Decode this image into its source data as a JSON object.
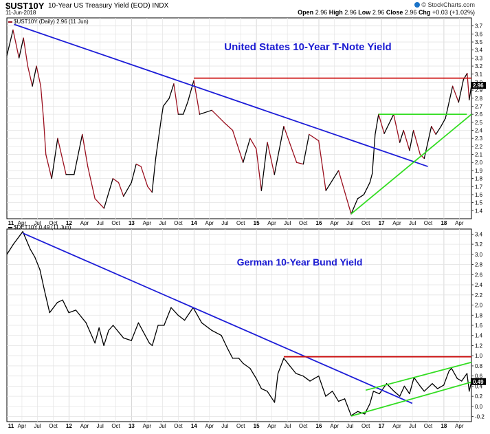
{
  "header": {
    "symbol": "$UST10Y",
    "description": "10-Year US Treasury Yield (EOD) INDX",
    "date": "11-Jun-2018",
    "credit": "© StockCharts.com",
    "ohlc": {
      "open_label": "Open",
      "open": "2.96",
      "high_label": "High",
      "high": "2.96",
      "low_label": "Low",
      "low": "2.96",
      "close_label": "Close",
      "close": "2.96",
      "chg_label": "Chg",
      "chg": "+0.03 (+1.02%)"
    }
  },
  "chart_data": [
    {
      "type": "line",
      "title": "United States 10-Year T-Note Yield",
      "legend": "$UST10Y (Daily) 2.96 (11 Jun)",
      "last_value_label": "2.96",
      "ylim": [
        1.3,
        3.8
      ],
      "yticks": [
        "1.4",
        "1.5",
        "1.6",
        "1.7",
        "1.8",
        "1.9",
        "2.0",
        "2.1",
        "2.2",
        "2.3",
        "2.4",
        "2.5",
        "2.6",
        "2.7",
        "2.8",
        "2.9",
        "3.0",
        "3.1",
        "3.2",
        "3.3",
        "3.4",
        "3.5",
        "3.6",
        "3.7"
      ],
      "xticks": [
        "11",
        "Apr",
        "Jul",
        "Oct",
        "12",
        "Apr",
        "Jul",
        "Oct",
        "13",
        "Apr",
        "Jul",
        "Oct",
        "14",
        "Apr",
        "Jul",
        "Oct",
        "15",
        "Apr",
        "Jul",
        "Oct",
        "16",
        "Apr",
        "Jul",
        "Oct",
        "17",
        "Apr",
        "Jul",
        "Oct",
        "18",
        "Apr"
      ],
      "series": [
        {
          "color": "#9a0f1e",
          "segment_colors": [
            "#9a0f1e",
            "#000000"
          ],
          "x": [
            "2011-01-03",
            "2011-02-08",
            "2011-03-15",
            "2011-04-10",
            "2011-05-05",
            "2011-06-01",
            "2011-06-25",
            "2011-07-20",
            "2011-08-05",
            "2011-08-19",
            "2011-09-22",
            "2011-10-27",
            "2011-12-15",
            "2012-01-31",
            "2012-03-19",
            "2012-04-20",
            "2012-06-01",
            "2012-07-24",
            "2012-09-14",
            "2012-10-17",
            "2012-11-15",
            "2012-12-31",
            "2013-01-28",
            "2013-02-25",
            "2013-04-05",
            "2013-05-01",
            "2013-05-22",
            "2013-06-24",
            "2013-07-05",
            "2013-08-09",
            "2013-09-05",
            "2013-10-01",
            "2013-10-30",
            "2013-11-25",
            "2013-12-31",
            "2014-02-03",
            "2014-04-15",
            "2014-06-25",
            "2014-08-15",
            "2014-10-15",
            "2014-11-25",
            "2014-12-31",
            "2015-01-30",
            "2015-03-06",
            "2015-04-16",
            "2015-06-10",
            "2015-08-24",
            "2015-10-02",
            "2015-11-05",
            "2015-12-31",
            "2016-02-11",
            "2016-04-25",
            "2016-06-24",
            "2016-07-08",
            "2016-08-15",
            "2016-09-20",
            "2016-10-25",
            "2016-11-08",
            "2016-11-25",
            "2016-12-15",
            "2017-01-17",
            "2017-03-13",
            "2017-04-18",
            "2017-05-10",
            "2017-06-14",
            "2017-07-07",
            "2017-08-15",
            "2017-09-08",
            "2017-10-20",
            "2017-11-15",
            "2017-12-15",
            "2018-01-10",
            "2018-01-31",
            "2018-02-21",
            "2018-03-28",
            "2018-04-25",
            "2018-05-17",
            "2018-05-29",
            "2018-06-11"
          ],
          "values": [
            3.33,
            3.65,
            3.3,
            3.55,
            3.2,
            2.95,
            3.2,
            2.95,
            2.55,
            2.1,
            1.8,
            2.3,
            1.85,
            1.85,
            2.35,
            1.95,
            1.55,
            1.43,
            1.8,
            1.75,
            1.58,
            1.75,
            1.98,
            1.95,
            1.7,
            1.63,
            2.05,
            2.55,
            2.7,
            2.8,
            2.98,
            2.6,
            2.6,
            2.75,
            3.02,
            2.6,
            2.65,
            2.5,
            2.4,
            2.0,
            2.3,
            2.17,
            1.65,
            2.25,
            1.85,
            2.45,
            2.0,
            1.98,
            2.35,
            2.27,
            1.65,
            1.9,
            1.46,
            1.36,
            1.55,
            1.6,
            1.75,
            1.86,
            2.35,
            2.6,
            2.36,
            2.6,
            2.25,
            2.4,
            2.15,
            2.4,
            2.1,
            2.05,
            2.45,
            2.35,
            2.45,
            2.55,
            2.75,
            2.95,
            2.75,
            3.03,
            3.11,
            2.78,
            2.96
          ]
        }
      ],
      "trendlines": [
        {
          "color": "#1e1ed8",
          "x": [
            "2011-02-14",
            "2017-09-29"
          ],
          "y": [
            3.72,
            1.95
          ]
        },
        {
          "color": "#cc1111",
          "x": [
            "2013-12-31",
            "2018-06-11"
          ],
          "y": [
            3.05,
            3.05
          ]
        },
        {
          "color": "#33dd22",
          "x": [
            "2016-12-15",
            "2018-05-15"
          ],
          "y": [
            2.6,
            2.6
          ]
        },
        {
          "color": "#33dd22",
          "x": [
            "2016-07-08",
            "2018-06-11"
          ],
          "y": [
            1.36,
            2.6
          ]
        }
      ]
    },
    {
      "type": "line",
      "title": "German 10-Year Bund Yield",
      "legend": "$DET10Y 0.49 (11 Jun)",
      "last_value_label": "0.49",
      "ylim": [
        -0.3,
        3.5
      ],
      "yticks": [
        "-0.2",
        "0.0",
        "0.2",
        "0.4",
        "0.6",
        "0.8",
        "1.0",
        "1.2",
        "1.4",
        "1.6",
        "1.8",
        "2.0",
        "2.2",
        "2.4",
        "2.6",
        "2.8",
        "3.0",
        "3.2",
        "3.4"
      ],
      "xticks": [
        "11",
        "Apr",
        "Jul",
        "Oct",
        "12",
        "Apr",
        "Jul",
        "Oct",
        "13",
        "Apr",
        "Jul",
        "Oct",
        "14",
        "Apr",
        "Jul",
        "Oct",
        "15",
        "Apr",
        "Jul",
        "Oct",
        "16",
        "Apr",
        "Jul",
        "Oct",
        "17",
        "Apr",
        "Jul",
        "Oct",
        "18",
        "Apr"
      ],
      "series": [
        {
          "color": "#000000",
          "x": [
            "2011-01-03",
            "2011-02-10",
            "2011-04-06",
            "2011-05-20",
            "2011-06-15",
            "2011-07-15",
            "2011-08-10",
            "2011-09-10",
            "2011-10-25",
            "2011-11-25",
            "2011-12-31",
            "2012-02-10",
            "2012-04-10",
            "2012-06-01",
            "2012-06-25",
            "2012-07-23",
            "2012-08-20",
            "2012-09-15",
            "2012-11-15",
            "2012-12-31",
            "2013-02-10",
            "2013-04-15",
            "2013-05-02",
            "2013-06-05",
            "2013-07-10",
            "2013-08-20",
            "2013-09-30",
            "2013-11-07",
            "2013-12-27",
            "2014-02-15",
            "2014-04-15",
            "2014-06-10",
            "2014-07-15",
            "2014-08-15",
            "2014-09-20",
            "2014-10-15",
            "2014-11-25",
            "2014-12-31",
            "2015-01-30",
            "2015-03-05",
            "2015-04-17",
            "2015-05-07",
            "2015-06-10",
            "2015-07-15",
            "2015-08-20",
            "2015-10-01",
            "2015-11-10",
            "2015-12-31",
            "2016-02-10",
            "2016-03-20",
            "2016-04-25",
            "2016-05-31",
            "2016-07-08",
            "2016-08-15",
            "2016-09-25",
            "2016-10-25",
            "2016-11-15",
            "2016-12-20",
            "2017-01-31",
            "2017-03-15",
            "2017-04-18",
            "2017-05-15",
            "2017-06-14",
            "2017-07-10",
            "2017-08-15",
            "2017-09-08",
            "2017-10-25",
            "2017-11-25",
            "2017-12-31",
            "2018-01-31",
            "2018-02-15",
            "2018-03-20",
            "2018-04-15",
            "2018-05-16",
            "2018-05-29",
            "2018-06-11"
          ],
          "values": [
            3.0,
            3.2,
            3.45,
            3.1,
            2.95,
            2.7,
            2.3,
            1.85,
            2.05,
            2.1,
            1.85,
            1.9,
            1.65,
            1.25,
            1.55,
            1.2,
            1.5,
            1.6,
            1.35,
            1.3,
            1.65,
            1.25,
            1.2,
            1.6,
            1.6,
            1.95,
            1.8,
            1.7,
            1.95,
            1.65,
            1.5,
            1.4,
            1.15,
            0.95,
            0.95,
            0.85,
            0.75,
            0.55,
            0.35,
            0.3,
            0.08,
            0.65,
            0.95,
            0.8,
            0.65,
            0.6,
            0.5,
            0.6,
            0.2,
            0.3,
            0.1,
            0.15,
            -0.18,
            -0.1,
            -0.15,
            0.05,
            0.3,
            0.25,
            0.45,
            0.3,
            0.2,
            0.4,
            0.25,
            0.57,
            0.4,
            0.3,
            0.45,
            0.35,
            0.42,
            0.7,
            0.75,
            0.55,
            0.5,
            0.65,
            0.3,
            0.49
          ]
        }
      ],
      "trendlines": [
        {
          "color": "#1e1ed8",
          "x": [
            "2011-04-06",
            "2017-06-30"
          ],
          "y": [
            3.42,
            0.06
          ]
        },
        {
          "color": "#cc1111",
          "x": [
            "2015-06-10",
            "2018-06-11"
          ],
          "y": [
            0.98,
            0.98
          ]
        },
        {
          "color": "#33dd22",
          "x": [
            "2016-10-01",
            "2018-06-11"
          ],
          "y": [
            0.32,
            0.87
          ]
        },
        {
          "color": "#33dd22",
          "x": [
            "2016-07-08",
            "2018-06-11"
          ],
          "y": [
            -0.19,
            0.48
          ]
        }
      ]
    }
  ]
}
